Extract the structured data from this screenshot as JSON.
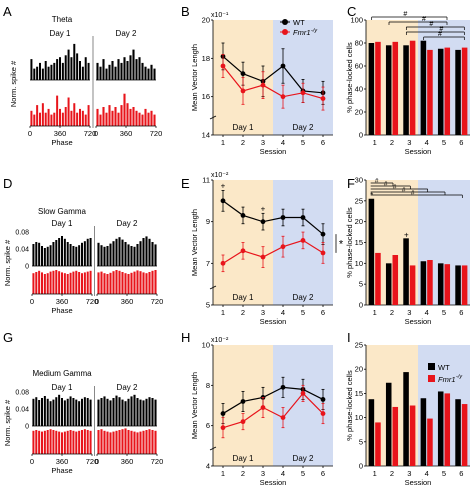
{
  "figure": {
    "panel_letters": [
      "A",
      "B",
      "C",
      "D",
      "E",
      "F",
      "G",
      "H",
      "I"
    ],
    "colors": {
      "wt": "#000000",
      "fmr1": "#e8141b",
      "day1_bg": "#fbe8c8",
      "day2_bg": "#d2dcf2"
    }
  },
  "chart_data": [
    {
      "panel": "A",
      "type": "bar",
      "title": "Theta",
      "day_labels": [
        "Day 1",
        "Day 2"
      ],
      "ylabel": "Norm. spike #",
      "xlabel": "Phase",
      "xticks": [
        "0",
        "360",
        "720",
        "0",
        "360",
        "720"
      ],
      "series": [
        {
          "name": "WT",
          "day1": [
            0.55,
            0.3,
            0.35,
            0.45,
            0.3,
            0.5,
            0.35,
            0.4,
            0.45,
            0.55,
            0.6,
            0.45,
            0.65,
            0.8,
            0.6,
            0.95,
            0.7,
            0.5,
            0.35,
            0.6,
            0.45
          ],
          "day2": [
            0.45,
            0.35,
            0.55,
            0.3,
            0.4,
            0.5,
            0.35,
            0.55,
            0.45,
            0.6,
            0.5,
            0.65,
            0.8,
            0.55,
            0.6,
            0.45,
            0.35,
            0.3,
            0.4,
            0.3
          ]
        },
        {
          "name": "Fmr1",
          "day1": [
            0.4,
            0.3,
            0.55,
            0.35,
            0.6,
            0.35,
            0.45,
            0.3,
            0.35,
            0.8,
            0.45,
            0.35,
            0.5,
            0.75,
            0.4,
            0.6,
            0.35,
            0.45,
            0.4,
            0.3,
            0.55
          ],
          "day2": [
            0.45,
            0.3,
            0.5,
            0.35,
            0.55,
            0.4,
            0.5,
            0.35,
            0.55,
            0.85,
            0.6,
            0.45,
            0.5,
            0.4,
            0.35,
            0.3,
            0.45,
            0.35,
            0.4,
            0.3
          ]
        }
      ]
    },
    {
      "panel": "B",
      "type": "line",
      "ylabel": "Mean Vector Length",
      "xlabel": "Session",
      "yscale_label": "x10⁻¹",
      "x": [
        1,
        2,
        3,
        4,
        5,
        6
      ],
      "ylim": [
        14,
        20
      ],
      "yticks": [
        14,
        16,
        18,
        20
      ],
      "day_labels": [
        "Day 1",
        "Day 2"
      ],
      "series": [
        {
          "name": "WT",
          "values": [
            18.1,
            17.2,
            16.8,
            17.6,
            16.3,
            16.2
          ],
          "err": [
            0.7,
            0.6,
            0.8,
            0.9,
            0.6,
            0.6
          ]
        },
        {
          "name": "Fmr1",
          "values": [
            17.6,
            16.3,
            16.6,
            16.0,
            16.2,
            15.9
          ],
          "err": [
            0.6,
            0.7,
            0.7,
            0.6,
            0.5,
            0.6
          ]
        }
      ]
    },
    {
      "panel": "C",
      "type": "bar",
      "ylabel": "% phase-locked cells",
      "xlabel": "Session",
      "categories": [
        "1",
        "2",
        "3",
        "4",
        "5",
        "6"
      ],
      "ylim": [
        0,
        100
      ],
      "yticks": [
        0,
        20,
        40,
        60,
        80,
        100
      ],
      "series": [
        {
          "name": "WT",
          "values": [
            80,
            78,
            78,
            82,
            75,
            74
          ]
        },
        {
          "name": "Fmr1",
          "values": [
            81,
            81,
            82,
            74,
            76,
            76
          ]
        }
      ],
      "sig_mark": "#"
    },
    {
      "panel": "D",
      "type": "bar",
      "title": "Slow Gamma",
      "day_labels": [
        "Day 1",
        "Day 2"
      ],
      "ylabel": "Norm. spike #",
      "xlabel": "Phase",
      "yticks": [
        "0.08",
        "0.04",
        "0"
      ],
      "xticks": [
        "0",
        "360",
        "720",
        "0",
        "360",
        "720"
      ],
      "series": [
        {
          "name": "WT",
          "day1": [
            0.055,
            0.06,
            0.058,
            0.05,
            0.045,
            0.048,
            0.052,
            0.06,
            0.065,
            0.07,
            0.075,
            0.068,
            0.06,
            0.055,
            0.05,
            0.048,
            0.052,
            0.058,
            0.062,
            0.068,
            0.07
          ],
          "day2": [
            0.058,
            0.052,
            0.048,
            0.05,
            0.056,
            0.062,
            0.068,
            0.072,
            0.066,
            0.06,
            0.054,
            0.05,
            0.048,
            0.055,
            0.062,
            0.07,
            0.074,
            0.068,
            0.06,
            0.054
          ]
        },
        {
          "name": "Fmr1",
          "day1": [
            0.052,
            0.055,
            0.058,
            0.054,
            0.05,
            0.052,
            0.056,
            0.058,
            0.06,
            0.057,
            0.054,
            0.052,
            0.05,
            0.053,
            0.056,
            0.058,
            0.055,
            0.052,
            0.054,
            0.056,
            0.058
          ],
          "day2": [
            0.054,
            0.056,
            0.052,
            0.05,
            0.053,
            0.057,
            0.06,
            0.058,
            0.055,
            0.052,
            0.05,
            0.053,
            0.056,
            0.059,
            0.057,
            0.054,
            0.052,
            0.055,
            0.058,
            0.06
          ]
        }
      ]
    },
    {
      "panel": "E",
      "type": "line",
      "ylabel": "Mean Vector Length",
      "xlabel": "Session",
      "yscale_label": "x10⁻²",
      "x": [
        1,
        2,
        3,
        4,
        5,
        6
      ],
      "ylim": [
        5,
        11
      ],
      "yticks": [
        5,
        7,
        9,
        11
      ],
      "day_labels": [
        "Day 1",
        "Day 2"
      ],
      "series": [
        {
          "name": "WT",
          "values": [
            10.0,
            9.3,
            9.0,
            9.2,
            9.2,
            8.4
          ],
          "err": [
            0.5,
            0.4,
            0.4,
            0.4,
            0.4,
            0.5
          ]
        },
        {
          "name": "Fmr1",
          "values": [
            7.0,
            7.6,
            7.3,
            7.8,
            8.1,
            7.5
          ],
          "err": [
            0.4,
            0.4,
            0.5,
            0.5,
            0.4,
            0.5
          ]
        }
      ],
      "annotations": [
        "+",
        "+",
        "*"
      ]
    },
    {
      "panel": "F",
      "type": "bar",
      "ylabel": "% phase-locked cells",
      "xlabel": "Session",
      "categories": [
        "1",
        "2",
        "3",
        "4",
        "5",
        "6"
      ],
      "ylim": [
        0,
        30
      ],
      "yticks": [
        0,
        5,
        10,
        15,
        20,
        25,
        30
      ],
      "series": [
        {
          "name": "WT",
          "values": [
            25.5,
            10.0,
            16.0,
            10.5,
            10.0,
            9.5
          ]
        },
        {
          "name": "Fmr1",
          "values": [
            12.5,
            12.0,
            9.5,
            10.8,
            9.8,
            9.5
          ]
        }
      ],
      "sig_mark": "#",
      "annotations": [
        "*",
        "+"
      ]
    },
    {
      "panel": "G",
      "type": "bar",
      "title": "Medium Gamma",
      "day_labels": [
        "Day 1",
        "Day 2"
      ],
      "ylabel": "Norm. spike #",
      "xlabel": "Phase",
      "yticks": [
        "0.08",
        "0.04",
        "0"
      ],
      "xticks": [
        "0",
        "360",
        "720",
        "0",
        "360",
        "720"
      ],
      "series": [
        {
          "name": "WT",
          "day1": [
            0.068,
            0.072,
            0.065,
            0.07,
            0.075,
            0.068,
            0.062,
            0.066,
            0.072,
            0.078,
            0.07,
            0.064,
            0.068,
            0.074,
            0.07,
            0.066,
            0.062,
            0.068,
            0.072,
            0.07,
            0.066
          ],
          "day2": [
            0.066,
            0.07,
            0.074,
            0.068,
            0.064,
            0.07,
            0.076,
            0.072,
            0.066,
            0.062,
            0.068,
            0.074,
            0.078,
            0.07,
            0.066,
            0.064,
            0.068,
            0.072,
            0.07,
            0.066
          ]
        },
        {
          "name": "Fmr1",
          "day1": [
            0.058,
            0.06,
            0.058,
            0.056,
            0.058,
            0.06,
            0.062,
            0.06,
            0.058,
            0.056,
            0.054,
            0.056,
            0.058,
            0.06,
            0.058,
            0.056,
            0.058,
            0.06,
            0.062,
            0.06,
            0.058
          ],
          "day2": [
            0.06,
            0.062,
            0.058,
            0.056,
            0.054,
            0.056,
            0.058,
            0.06,
            0.062,
            0.064,
            0.06,
            0.058,
            0.056,
            0.054,
            0.056,
            0.058,
            0.06,
            0.062,
            0.06,
            0.058
          ]
        }
      ]
    },
    {
      "panel": "H",
      "type": "line",
      "ylabel": "Mean Vector Length",
      "xlabel": "Session",
      "yscale_label": "x10⁻²",
      "x": [
        1,
        2,
        3,
        4,
        5,
        6
      ],
      "ylim": [
        4,
        10
      ],
      "yticks": [
        4,
        6,
        8,
        10
      ],
      "day_labels": [
        "Day 1",
        "Day 2"
      ],
      "series": [
        {
          "name": "WT",
          "values": [
            6.6,
            7.2,
            7.4,
            7.9,
            7.8,
            7.3
          ],
          "err": [
            0.5,
            0.5,
            0.5,
            0.5,
            0.5,
            0.5
          ]
        },
        {
          "name": "Fmr1",
          "values": [
            5.9,
            6.2,
            6.9,
            6.4,
            7.6,
            6.6
          ],
          "err": [
            0.5,
            0.4,
            0.5,
            0.5,
            0.4,
            0.5
          ]
        }
      ]
    },
    {
      "panel": "I",
      "type": "bar",
      "ylabel": "% phase-locked cells",
      "xlabel": "Session",
      "categories": [
        "1",
        "2",
        "3",
        "4",
        "5",
        "6"
      ],
      "ylim": [
        0,
        25
      ],
      "yticks": [
        0,
        5,
        10,
        15,
        20,
        25
      ],
      "series": [
        {
          "name": "WT",
          "values": [
            13.8,
            17.2,
            19.4,
            14.0,
            15.4,
            13.8
          ]
        },
        {
          "name": "Fmr1",
          "values": [
            9.0,
            12.2,
            12.5,
            9.8,
            15.0,
            12.8
          ]
        }
      ],
      "legend_position": "top-right"
    }
  ],
  "legend_labels": {
    "wt": "WT",
    "fmr1": "Fmr1",
    "fmr1_sup": "-/y"
  },
  "tick_labels": {
    "session": [
      "1",
      "2",
      "3",
      "4",
      "5",
      "6"
    ]
  }
}
